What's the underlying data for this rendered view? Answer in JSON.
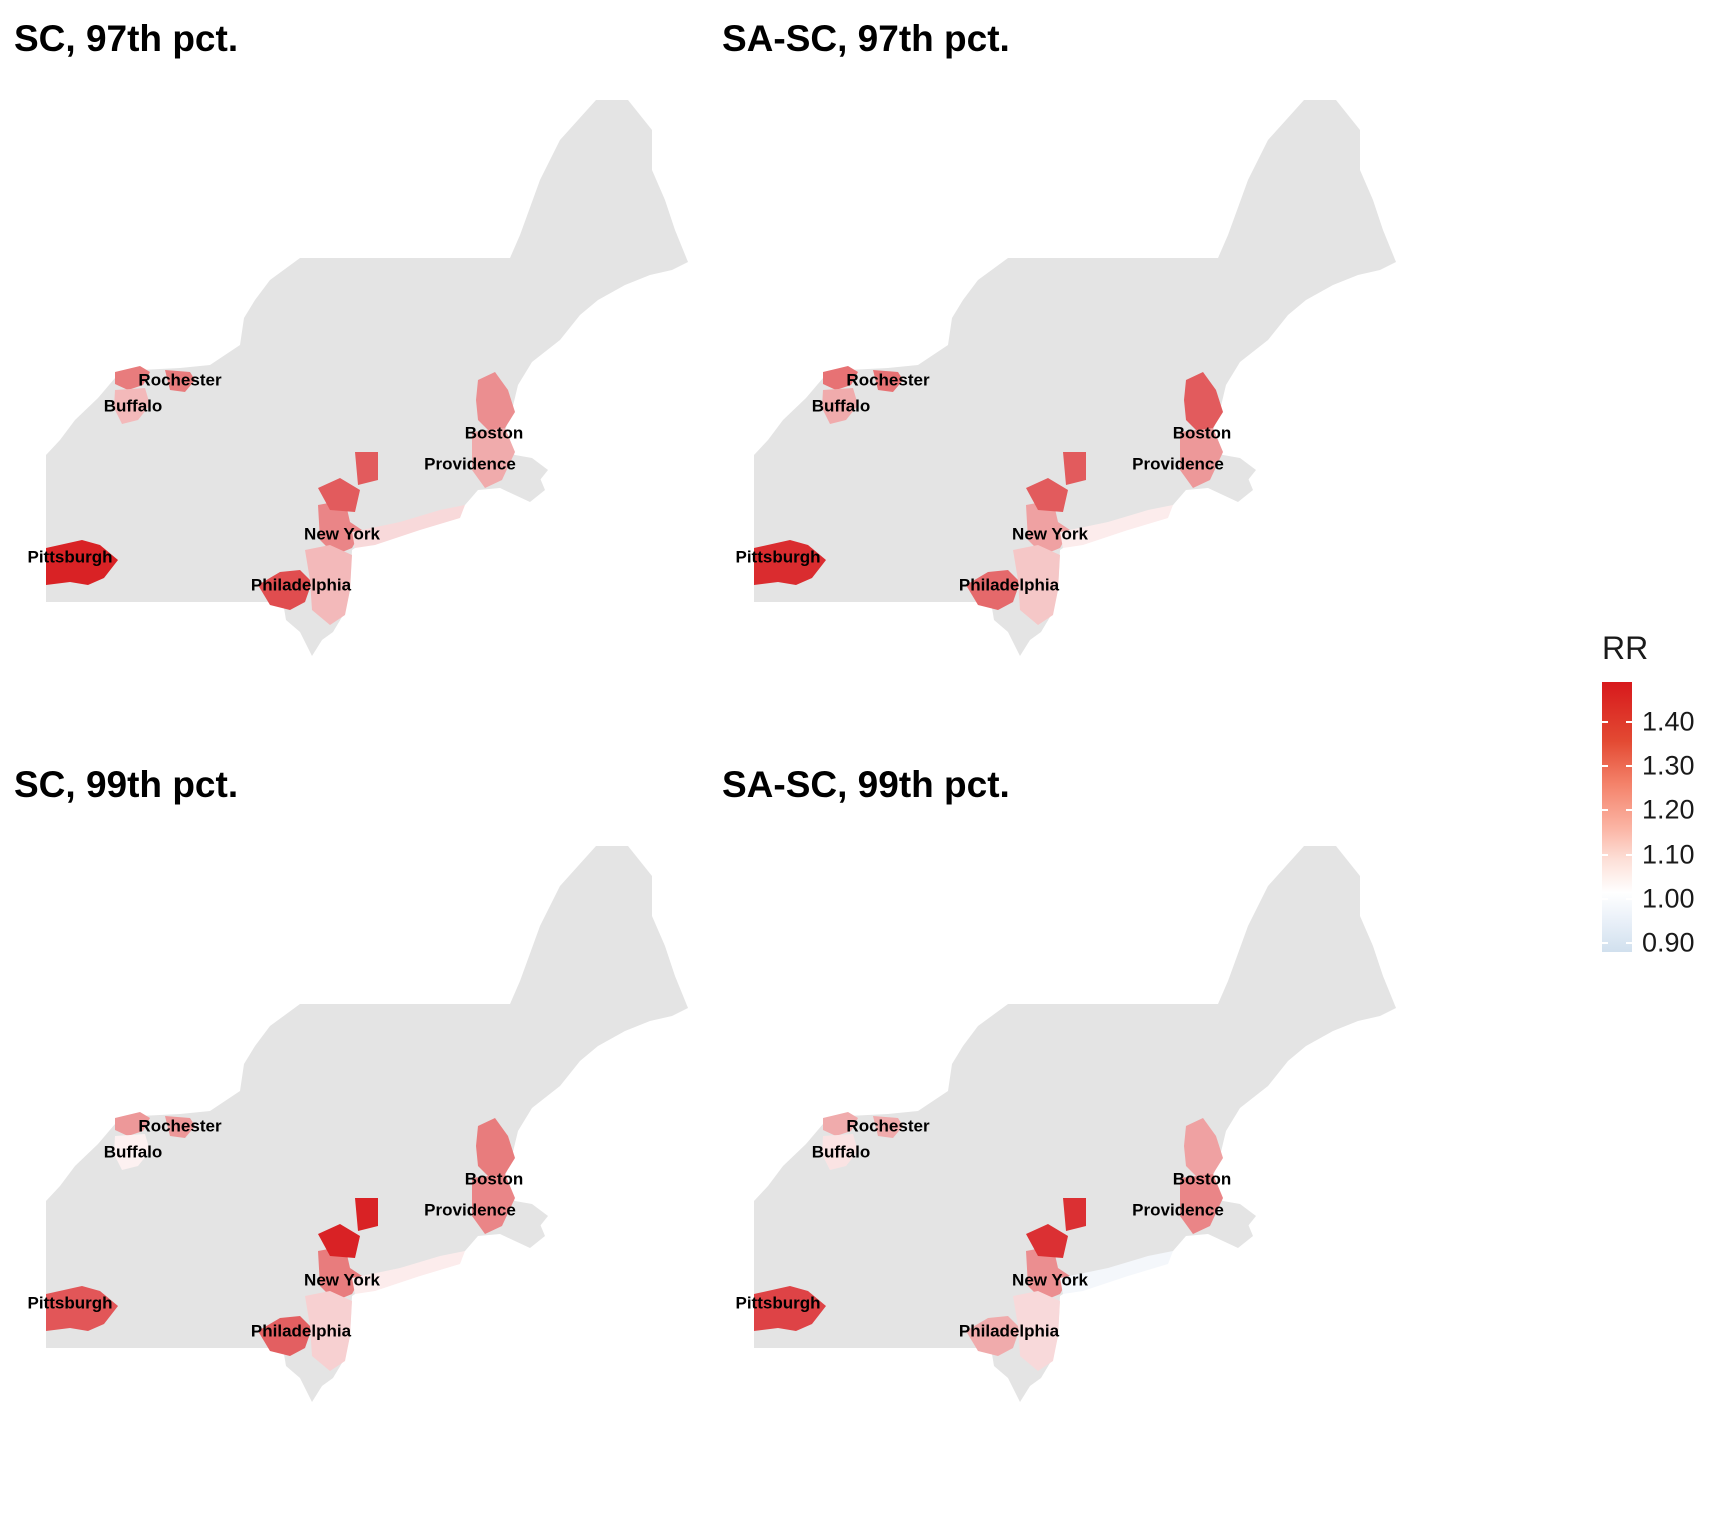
{
  "panels": [
    {
      "title": "SC, 97th pct.",
      "key": "sc97"
    },
    {
      "title": "SA-SC, 97th pct.",
      "key": "sasc97"
    },
    {
      "title": "SC, 99th pct.",
      "key": "sc99"
    },
    {
      "title": "SA-SC, 99th pct.",
      "key": "sasc99"
    }
  ],
  "cities": [
    "Rochester",
    "Buffalo",
    "Boston",
    "Providence",
    "New York",
    "Pittsburgh",
    "Philadelphia"
  ],
  "legend": {
    "title": "RR",
    "ticks": [
      "1.40",
      "1.30",
      "1.20",
      "1.10",
      "1.00",
      "0.90"
    ],
    "tick_values": [
      1.4,
      1.3,
      1.2,
      1.1,
      1.0,
      0.9
    ],
    "range": [
      0.88,
      1.49
    ],
    "colors": {
      "high": "#d7191c",
      "mid": "#ffffff",
      "low": "#d1e0ee",
      "na": "#e4e4e4"
    }
  },
  "rr_values": {
    "sc97": {
      "rochester": 1.28,
      "buffalo": 1.15,
      "boston": 1.24,
      "providence": 1.18,
      "newyork": 1.26,
      "nyhudson": 1.35,
      "pittsburgh": 1.47,
      "philadelphia": 1.38,
      "longisland": 1.08,
      "nj": 1.15
    },
    "sasc97": {
      "rochester": 1.3,
      "buffalo": 1.18,
      "boston": 1.35,
      "providence": 1.22,
      "newyork": 1.2,
      "nyhudson": 1.35,
      "pittsburgh": 1.45,
      "philadelphia": 1.32,
      "longisland": 1.04,
      "nj": 1.12
    },
    "sc99": {
      "rochester": 1.22,
      "buffalo": 1.03,
      "boston": 1.28,
      "providence": 1.26,
      "newyork": 1.28,
      "nyhudson": 1.47,
      "pittsburgh": 1.36,
      "philadelphia": 1.34,
      "longisland": 1.04,
      "nj": 1.1
    },
    "sasc99": {
      "rochester": 1.18,
      "buffalo": 1.06,
      "boston": 1.2,
      "providence": 1.26,
      "newyork": 1.24,
      "nyhudson": 1.44,
      "pittsburgh": 1.4,
      "philadelphia": 1.18,
      "longisland": 0.97,
      "nj": 1.08
    }
  }
}
